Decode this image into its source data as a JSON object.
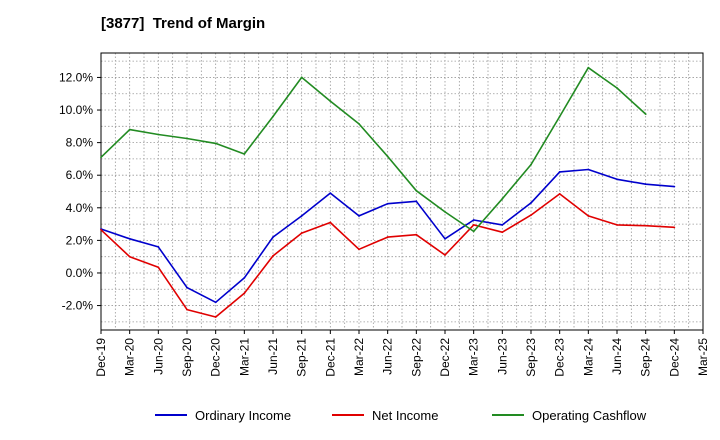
{
  "chart_data": {
    "type": "line",
    "title": "[3877]  Trend of Margin",
    "xlabel": "",
    "ylabel": "",
    "ylim": [
      -3.5,
      13.5
    ],
    "yticks": [
      -2.0,
      0.0,
      2.0,
      4.0,
      6.0,
      8.0,
      10.0,
      12.0
    ],
    "ytick_labels": [
      "-2.0%",
      "0.0%",
      "2.0%",
      "4.0%",
      "6.0%",
      "8.0%",
      "10.0%",
      "12.0%"
    ],
    "grid": true,
    "legend_position": "bottom",
    "categories": [
      "Dec-19",
      "Mar-20",
      "Jun-20",
      "Sep-20",
      "Dec-20",
      "Mar-21",
      "Jun-21",
      "Sep-21",
      "Dec-21",
      "Mar-22",
      "Jun-22",
      "Sep-22",
      "Dec-22",
      "Mar-23",
      "Jun-23",
      "Sep-23",
      "Dec-23",
      "Mar-24",
      "Jun-24",
      "Sep-24",
      "Dec-24",
      "Mar-25"
    ],
    "series": [
      {
        "name": "Ordinary Income",
        "color": "#0000cc",
        "values": [
          2.7,
          2.1,
          1.6,
          -0.9,
          -1.8,
          -0.3,
          2.2,
          3.5,
          4.9,
          3.5,
          4.25,
          4.4,
          2.1,
          3.25,
          2.95,
          4.3,
          6.2,
          6.35,
          5.75,
          5.45,
          5.3,
          null
        ]
      },
      {
        "name": "Net Income",
        "color": "#e00000",
        "values": [
          2.65,
          1.0,
          0.35,
          -2.25,
          -2.7,
          -1.25,
          1.05,
          2.45,
          3.1,
          1.45,
          2.2,
          2.35,
          1.1,
          2.95,
          2.5,
          3.55,
          4.85,
          3.5,
          2.95,
          2.9,
          2.8,
          null
        ]
      },
      {
        "name": "Operating Cashflow",
        "color": "#228b22",
        "values": [
          7.1,
          8.8,
          8.5,
          8.25,
          7.95,
          7.3,
          9.6,
          12.0,
          10.55,
          9.15,
          7.15,
          5.05,
          3.75,
          2.55,
          4.55,
          6.65,
          9.6,
          12.6,
          11.35,
          9.75,
          null,
          null
        ]
      }
    ]
  }
}
